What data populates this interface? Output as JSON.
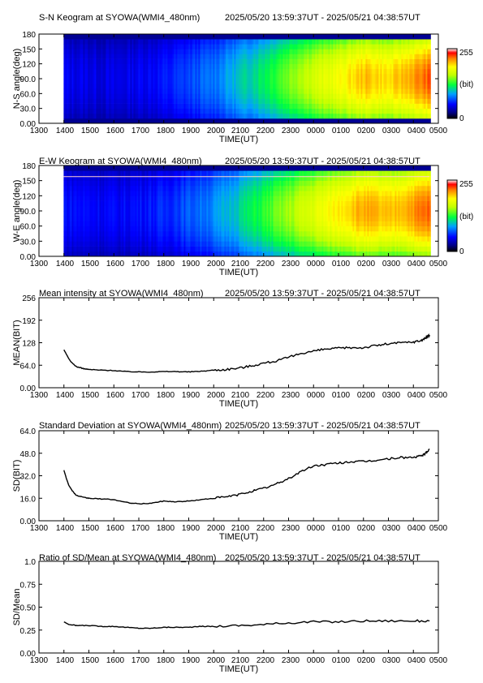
{
  "time_range": "2025/05/20 13:59:37UT - 2025/05/21 04:38:57UT",
  "x_ticks": [
    "1300",
    "1400",
    "1500",
    "1600",
    "1700",
    "1800",
    "1900",
    "2000",
    "2100",
    "2200",
    "2300",
    "0000",
    "0100",
    "0200",
    "0300",
    "0400",
    "0500"
  ],
  "x_label": "TIME(UT)",
  "colorbar": {
    "max": "255",
    "mid": "(bit)",
    "min": "0"
  },
  "chart_data": [
    {
      "type": "heatmap",
      "title": "S-N Keogram at SYOWA(WMI4_480nm)",
      "ylabel": "N-S angle(deg)",
      "yticks": [
        "180",
        "150",
        "120",
        "90.0",
        "60.0",
        "30.0",
        "0.00"
      ],
      "ylim": [
        0,
        180
      ],
      "xlim_hours": [
        13.0,
        29.0
      ],
      "data_x_range_hours": [
        13.99,
        28.65
      ],
      "colorscale": "rainbow 0-255 bit",
      "intensity_profile": [
        {
          "t": 14.0,
          "v": 48
        },
        {
          "t": 16.0,
          "v": 44
        },
        {
          "t": 18.0,
          "v": 55
        },
        {
          "t": 20.0,
          "v": 80
        },
        {
          "t": 22.0,
          "v": 120
        },
        {
          "t": 23.5,
          "v": 160
        },
        {
          "t": 25.0,
          "v": 185
        },
        {
          "t": 26.0,
          "v": 205
        },
        {
          "t": 27.0,
          "v": 195
        },
        {
          "t": 28.6,
          "v": 225
        }
      ],
      "dark_edges_deg": [
        0,
        12,
        168,
        180
      ]
    },
    {
      "type": "heatmap",
      "title": "E-W Keogram at SYOWA(WMI4_480nm)",
      "ylabel": "W-E angle(deg)",
      "yticks": [
        "180",
        "150",
        "120",
        "90.0",
        "60.0",
        "30.0",
        "0.00"
      ],
      "ylim": [
        0,
        180
      ],
      "xlim_hours": [
        13.0,
        29.0
      ],
      "data_x_range_hours": [
        13.99,
        28.65
      ],
      "colorscale": "rainbow 0-255 bit",
      "intensity_profile": [
        {
          "t": 14.0,
          "v": 55
        },
        {
          "t": 16.0,
          "v": 50
        },
        {
          "t": 18.0,
          "v": 60
        },
        {
          "t": 20.0,
          "v": 85
        },
        {
          "t": 22.0,
          "v": 130
        },
        {
          "t": 23.5,
          "v": 165
        },
        {
          "t": 25.0,
          "v": 195
        },
        {
          "t": 26.0,
          "v": 210
        },
        {
          "t": 27.0,
          "v": 200
        },
        {
          "t": 28.6,
          "v": 225
        }
      ],
      "dark_edges_deg": [
        0,
        4,
        172,
        180
      ],
      "bright_line_deg": 158
    },
    {
      "type": "line",
      "title": "Mean intensity at SYOWA(WMI4_480nm)",
      "ylabel": "MEAN(BIT)",
      "yticks": [
        "256",
        "192",
        "128",
        "64.0",
        "0.00"
      ],
      "ylim": [
        0,
        256
      ],
      "xlim_hours": [
        13.0,
        29.0
      ],
      "series": [
        {
          "points": [
            [
              14.0,
              108
            ],
            [
              14.1,
              95
            ],
            [
              14.2,
              82
            ],
            [
              14.3,
              72
            ],
            [
              14.5,
              60
            ],
            [
              14.8,
              54
            ],
            [
              15.0,
              52
            ],
            [
              15.5,
              50
            ],
            [
              16.0,
              49
            ],
            [
              16.5,
              46
            ],
            [
              17.0,
              45
            ],
            [
              17.5,
              45
            ],
            [
              18.0,
              46
            ],
            [
              18.5,
              46
            ],
            [
              19.0,
              45
            ],
            [
              19.5,
              47
            ],
            [
              20.0,
              50
            ],
            [
              20.5,
              52
            ],
            [
              21.0,
              56
            ],
            [
              21.5,
              62
            ],
            [
              22.0,
              70
            ],
            [
              22.5,
              76
            ],
            [
              23.0,
              86
            ],
            [
              23.5,
              98
            ],
            [
              24.0,
              104
            ],
            [
              24.5,
              110
            ],
            [
              25.0,
              112
            ],
            [
              25.5,
              114
            ],
            [
              26.0,
              114
            ],
            [
              26.5,
              120
            ],
            [
              27.0,
              125
            ],
            [
              27.5,
              128
            ],
            [
              28.0,
              130
            ],
            [
              28.3,
              134
            ],
            [
              28.5,
              142
            ],
            [
              28.65,
              150
            ]
          ]
        }
      ]
    },
    {
      "type": "line",
      "title": "Standard Deviation at SYOWA(WMI4_480nm)",
      "ylabel": "SD(BIT)",
      "yticks": [
        "64.0",
        "48.0",
        "32.0",
        "16.0",
        "0.00"
      ],
      "ylim": [
        0,
        64
      ],
      "xlim_hours": [
        13.0,
        29.0
      ],
      "series": [
        {
          "points": [
            [
              14.0,
              36
            ],
            [
              14.1,
              30
            ],
            [
              14.2,
              25
            ],
            [
              14.35,
              21
            ],
            [
              14.5,
              18
            ],
            [
              14.8,
              16.5
            ],
            [
              15.0,
              16
            ],
            [
              15.5,
              15.5
            ],
            [
              16.0,
              15
            ],
            [
              16.5,
              13
            ],
            [
              17.0,
              12
            ],
            [
              17.5,
              12.5
            ],
            [
              18.0,
              14
            ],
            [
              18.5,
              13.5
            ],
            [
              19.0,
              14
            ],
            [
              19.5,
              15
            ],
            [
              20.0,
              16
            ],
            [
              20.5,
              17
            ],
            [
              21.0,
              18.5
            ],
            [
              21.5,
              21
            ],
            [
              22.0,
              23
            ],
            [
              22.5,
              26
            ],
            [
              23.0,
              30
            ],
            [
              23.5,
              35
            ],
            [
              24.0,
              39
            ],
            [
              24.5,
              40
            ],
            [
              25.0,
              41
            ],
            [
              25.5,
              42
            ],
            [
              26.0,
              42
            ],
            [
              26.5,
              43
            ],
            [
              27.0,
              44
            ],
            [
              27.5,
              45
            ],
            [
              28.0,
              45
            ],
            [
              28.3,
              46
            ],
            [
              28.5,
              48
            ],
            [
              28.65,
              51
            ]
          ]
        }
      ]
    },
    {
      "type": "line",
      "title": "Ratio of SD/Mean at SYOWA(WMI4_480nm)",
      "ylabel": "SD/Mean",
      "yticks": [
        "1.0",
        "0.75",
        "0.50",
        "0.25",
        "0.00"
      ],
      "ylim": [
        0,
        1
      ],
      "xlim_hours": [
        13.0,
        29.0
      ],
      "series": [
        {
          "points": [
            [
              14.0,
              0.34
            ],
            [
              14.2,
              0.31
            ],
            [
              14.5,
              0.3
            ],
            [
              15.0,
              0.3
            ],
            [
              15.5,
              0.29
            ],
            [
              16.0,
              0.29
            ],
            [
              16.5,
              0.28
            ],
            [
              17.0,
              0.27
            ],
            [
              17.5,
              0.27
            ],
            [
              18.0,
              0.28
            ],
            [
              18.5,
              0.28
            ],
            [
              19.0,
              0.28
            ],
            [
              19.5,
              0.29
            ],
            [
              20.0,
              0.29
            ],
            [
              21.0,
              0.3
            ],
            [
              22.0,
              0.31
            ],
            [
              23.0,
              0.33
            ],
            [
              24.0,
              0.34
            ],
            [
              25.0,
              0.34
            ],
            [
              26.0,
              0.35
            ],
            [
              27.0,
              0.35
            ],
            [
              28.0,
              0.35
            ],
            [
              28.65,
              0.35
            ]
          ]
        }
      ]
    }
  ]
}
